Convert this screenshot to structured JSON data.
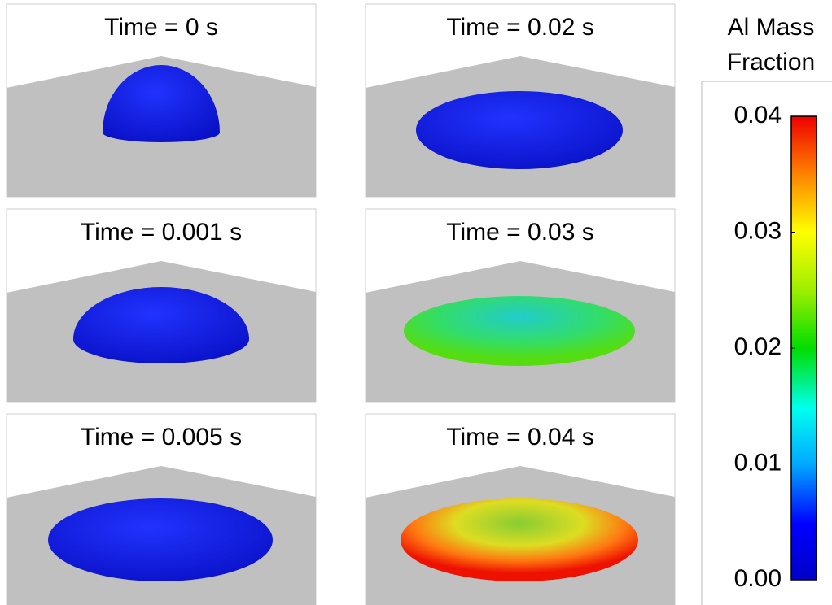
{
  "panels": [
    {
      "title": "Time = 0 s"
    },
    {
      "title": "Time = 0.02 s"
    },
    {
      "title": "Time = 0.001 s"
    },
    {
      "title": "Time = 0.03 s"
    },
    {
      "title": "Time = 0.005 s"
    },
    {
      "title": "Time = 0.04 s"
    }
  ],
  "colorbar": {
    "title": "Al Mass Fraction",
    "lim": [
      0,
      0.04
    ],
    "ticks": [
      {
        "value": 0,
        "label": "0.00"
      },
      0.01,
      0.02,
      0.03,
      0.04
    ]
  }
}
